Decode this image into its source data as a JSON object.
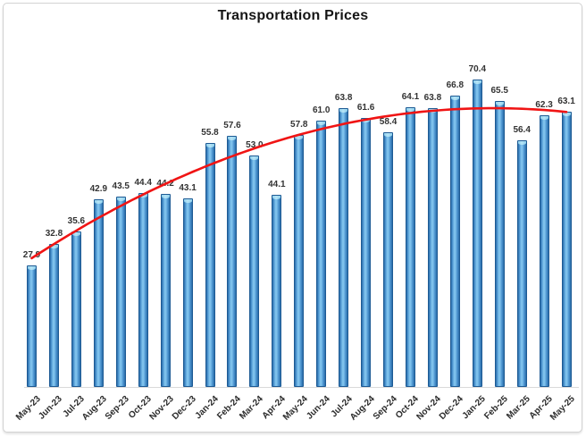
{
  "chart_data": {
    "type": "bar",
    "title": "Transportation Prices",
    "categories": [
      "May-23",
      "Jun-23",
      "Jul-23",
      "Aug-23",
      "Sep-23",
      "Oct-23",
      "Nov-23",
      "Dec-23",
      "Jan-24",
      "Feb-24",
      "Mar-24",
      "Apr-24",
      "May-24",
      "Jun-24",
      "Jul-24",
      "Aug-24",
      "Sep-24",
      "Oct-24",
      "Nov-24",
      "Dec-24",
      "Jan-25",
      "Feb-25",
      "Mar-25",
      "Apr-25",
      "May-25"
    ],
    "values": [
      27.9,
      32.8,
      35.6,
      42.9,
      43.5,
      44.4,
      44.2,
      43.1,
      55.8,
      57.6,
      53.0,
      44.1,
      57.8,
      61.0,
      63.8,
      61.6,
      58.4,
      64.1,
      63.8,
      66.8,
      70.4,
      65.5,
      56.4,
      62.3,
      63.1
    ],
    "data_labels": [
      "27.9",
      "32.8",
      "35.6",
      "42.9",
      "43.5",
      "44.4",
      "44.2",
      "43.1",
      "55.8",
      "57.6",
      "53.0",
      "44.1",
      "57.8",
      "61.0",
      "63.8",
      "61.6",
      "58.4",
      "64.1",
      "63.8",
      "66.8",
      "70.4",
      "65.5",
      "56.4",
      "62.3",
      "63.1"
    ],
    "xlabel": "",
    "ylabel": "",
    "ylim": [
      0,
      75
    ],
    "grid": false,
    "legend": "none",
    "bar_style": "cylinder",
    "trendline": {
      "type": "polynomial",
      "order": 2,
      "color": "#f01414"
    },
    "colors": {
      "bar_edge": "#1d5a94",
      "bar_dark": "#2a6ca8",
      "bar_mid": "#4e96d1",
      "bar_light": "#7fc2ec",
      "cap_light": "#b6e4f6",
      "cap_mid": "#8fd0ec",
      "label_color": "#333333",
      "axis_line": "#d9d9d9",
      "title_color": "#151515"
    }
  }
}
